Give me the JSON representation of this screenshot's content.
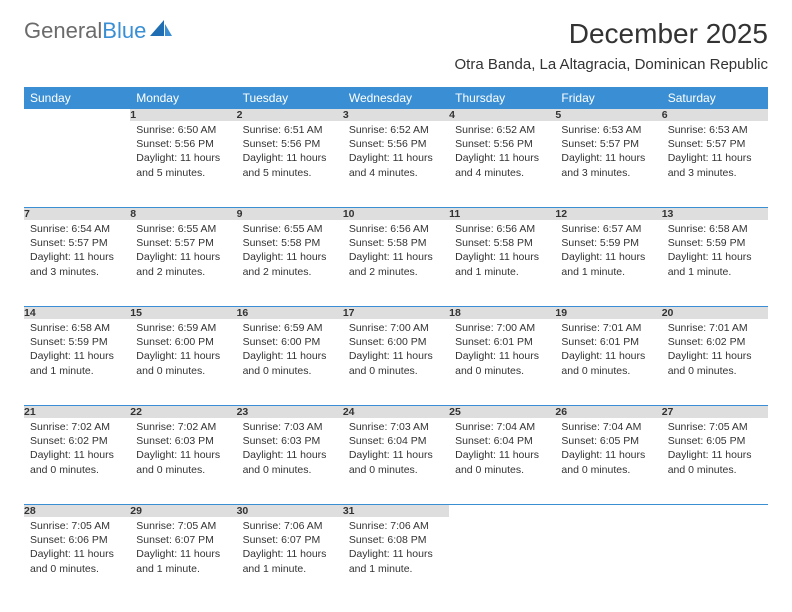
{
  "logo": {
    "part1": "General",
    "part2": "Blue"
  },
  "title": "December 2025",
  "subtitle": "Otra Banda, La Altagracia, Dominican Republic",
  "dayHeaders": [
    "Sunday",
    "Monday",
    "Tuesday",
    "Wednesday",
    "Thursday",
    "Friday",
    "Saturday"
  ],
  "weeks": [
    [
      null,
      {
        "n": "1",
        "sr": "Sunrise: 6:50 AM",
        "ss": "Sunset: 5:56 PM",
        "dl": "Daylight: 11 hours and 5 minutes."
      },
      {
        "n": "2",
        "sr": "Sunrise: 6:51 AM",
        "ss": "Sunset: 5:56 PM",
        "dl": "Daylight: 11 hours and 5 minutes."
      },
      {
        "n": "3",
        "sr": "Sunrise: 6:52 AM",
        "ss": "Sunset: 5:56 PM",
        "dl": "Daylight: 11 hours and 4 minutes."
      },
      {
        "n": "4",
        "sr": "Sunrise: 6:52 AM",
        "ss": "Sunset: 5:56 PM",
        "dl": "Daylight: 11 hours and 4 minutes."
      },
      {
        "n": "5",
        "sr": "Sunrise: 6:53 AM",
        "ss": "Sunset: 5:57 PM",
        "dl": "Daylight: 11 hours and 3 minutes."
      },
      {
        "n": "6",
        "sr": "Sunrise: 6:53 AM",
        "ss": "Sunset: 5:57 PM",
        "dl": "Daylight: 11 hours and 3 minutes."
      }
    ],
    [
      {
        "n": "7",
        "sr": "Sunrise: 6:54 AM",
        "ss": "Sunset: 5:57 PM",
        "dl": "Daylight: 11 hours and 3 minutes."
      },
      {
        "n": "8",
        "sr": "Sunrise: 6:55 AM",
        "ss": "Sunset: 5:57 PM",
        "dl": "Daylight: 11 hours and 2 minutes."
      },
      {
        "n": "9",
        "sr": "Sunrise: 6:55 AM",
        "ss": "Sunset: 5:58 PM",
        "dl": "Daylight: 11 hours and 2 minutes."
      },
      {
        "n": "10",
        "sr": "Sunrise: 6:56 AM",
        "ss": "Sunset: 5:58 PM",
        "dl": "Daylight: 11 hours and 2 minutes."
      },
      {
        "n": "11",
        "sr": "Sunrise: 6:56 AM",
        "ss": "Sunset: 5:58 PM",
        "dl": "Daylight: 11 hours and 1 minute."
      },
      {
        "n": "12",
        "sr": "Sunrise: 6:57 AM",
        "ss": "Sunset: 5:59 PM",
        "dl": "Daylight: 11 hours and 1 minute."
      },
      {
        "n": "13",
        "sr": "Sunrise: 6:58 AM",
        "ss": "Sunset: 5:59 PM",
        "dl": "Daylight: 11 hours and 1 minute."
      }
    ],
    [
      {
        "n": "14",
        "sr": "Sunrise: 6:58 AM",
        "ss": "Sunset: 5:59 PM",
        "dl": "Daylight: 11 hours and 1 minute."
      },
      {
        "n": "15",
        "sr": "Sunrise: 6:59 AM",
        "ss": "Sunset: 6:00 PM",
        "dl": "Daylight: 11 hours and 0 minutes."
      },
      {
        "n": "16",
        "sr": "Sunrise: 6:59 AM",
        "ss": "Sunset: 6:00 PM",
        "dl": "Daylight: 11 hours and 0 minutes."
      },
      {
        "n": "17",
        "sr": "Sunrise: 7:00 AM",
        "ss": "Sunset: 6:00 PM",
        "dl": "Daylight: 11 hours and 0 minutes."
      },
      {
        "n": "18",
        "sr": "Sunrise: 7:00 AM",
        "ss": "Sunset: 6:01 PM",
        "dl": "Daylight: 11 hours and 0 minutes."
      },
      {
        "n": "19",
        "sr": "Sunrise: 7:01 AM",
        "ss": "Sunset: 6:01 PM",
        "dl": "Daylight: 11 hours and 0 minutes."
      },
      {
        "n": "20",
        "sr": "Sunrise: 7:01 AM",
        "ss": "Sunset: 6:02 PM",
        "dl": "Daylight: 11 hours and 0 minutes."
      }
    ],
    [
      {
        "n": "21",
        "sr": "Sunrise: 7:02 AM",
        "ss": "Sunset: 6:02 PM",
        "dl": "Daylight: 11 hours and 0 minutes."
      },
      {
        "n": "22",
        "sr": "Sunrise: 7:02 AM",
        "ss": "Sunset: 6:03 PM",
        "dl": "Daylight: 11 hours and 0 minutes."
      },
      {
        "n": "23",
        "sr": "Sunrise: 7:03 AM",
        "ss": "Sunset: 6:03 PM",
        "dl": "Daylight: 11 hours and 0 minutes."
      },
      {
        "n": "24",
        "sr": "Sunrise: 7:03 AM",
        "ss": "Sunset: 6:04 PM",
        "dl": "Daylight: 11 hours and 0 minutes."
      },
      {
        "n": "25",
        "sr": "Sunrise: 7:04 AM",
        "ss": "Sunset: 6:04 PM",
        "dl": "Daylight: 11 hours and 0 minutes."
      },
      {
        "n": "26",
        "sr": "Sunrise: 7:04 AM",
        "ss": "Sunset: 6:05 PM",
        "dl": "Daylight: 11 hours and 0 minutes."
      },
      {
        "n": "27",
        "sr": "Sunrise: 7:05 AM",
        "ss": "Sunset: 6:05 PM",
        "dl": "Daylight: 11 hours and 0 minutes."
      }
    ],
    [
      {
        "n": "28",
        "sr": "Sunrise: 7:05 AM",
        "ss": "Sunset: 6:06 PM",
        "dl": "Daylight: 11 hours and 0 minutes."
      },
      {
        "n": "29",
        "sr": "Sunrise: 7:05 AM",
        "ss": "Sunset: 6:07 PM",
        "dl": "Daylight: 11 hours and 1 minute."
      },
      {
        "n": "30",
        "sr": "Sunrise: 7:06 AM",
        "ss": "Sunset: 6:07 PM",
        "dl": "Daylight: 11 hours and 1 minute."
      },
      {
        "n": "31",
        "sr": "Sunrise: 7:06 AM",
        "ss": "Sunset: 6:08 PM",
        "dl": "Daylight: 11 hours and 1 minute."
      },
      null,
      null,
      null
    ]
  ],
  "colors": {
    "headerBg": "#3a8fd4",
    "dayNumBg": "#dedede",
    "separator": "#3a8fd4",
    "text": "#333333",
    "logoGray": "#6b6b6b"
  }
}
